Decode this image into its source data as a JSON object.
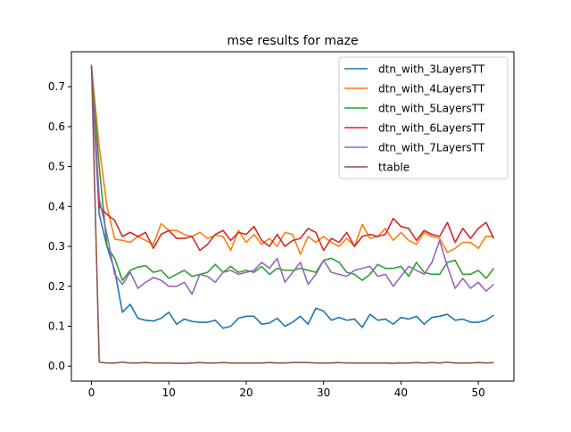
{
  "chart_data": {
    "type": "line",
    "title": "mse results for maze",
    "xlabel": "",
    "ylabel": "",
    "xlim": [
      -2.6,
      54.6
    ],
    "ylim": [
      -0.0375,
      0.7875
    ],
    "x_ticks": [
      0,
      10,
      20,
      30,
      40,
      50
    ],
    "y_ticks": [
      0.0,
      0.1,
      0.2,
      0.3,
      0.4,
      0.5,
      0.6,
      0.7
    ],
    "x_tick_labels": [
      "0",
      "10",
      "20",
      "30",
      "40",
      "50"
    ],
    "y_tick_labels": [
      "0.0",
      "0.1",
      "0.2",
      "0.3",
      "0.4",
      "0.5",
      "0.6",
      "0.7"
    ],
    "grid": false,
    "legend": "top-right",
    "x": [
      0,
      1,
      2,
      3,
      4,
      5,
      6,
      7,
      8,
      9,
      10,
      11,
      12,
      13,
      14,
      15,
      16,
      17,
      18,
      19,
      20,
      21,
      22,
      23,
      24,
      25,
      26,
      27,
      28,
      29,
      30,
      31,
      32,
      33,
      34,
      35,
      36,
      37,
      38,
      39,
      40,
      41,
      42,
      43,
      44,
      45,
      46,
      47,
      48,
      49,
      50,
      51,
      52
    ],
    "series": [
      {
        "name": "dtn_with_3LayersTT",
        "color": "#1f77b4",
        "values": [
          0.75,
          0.38,
          0.3,
          0.24,
          0.135,
          0.155,
          0.12,
          0.115,
          0.113,
          0.12,
          0.135,
          0.105,
          0.118,
          0.112,
          0.11,
          0.11,
          0.115,
          0.095,
          0.1,
          0.12,
          0.125,
          0.125,
          0.105,
          0.108,
          0.12,
          0.1,
          0.11,
          0.125,
          0.105,
          0.145,
          0.138,
          0.115,
          0.122,
          0.115,
          0.118,
          0.097,
          0.13,
          0.115,
          0.118,
          0.105,
          0.122,
          0.118,
          0.125,
          0.105,
          0.122,
          0.125,
          0.13,
          0.115,
          0.118,
          0.11,
          0.11,
          0.115,
          0.128
        ]
      },
      {
        "name": "dtn_with_4LayersTT",
        "color": "#ff7f0e",
        "values": [
          0.75,
          0.55,
          0.4,
          0.318,
          0.315,
          0.31,
          0.325,
          0.315,
          0.305,
          0.357,
          0.34,
          0.34,
          0.33,
          0.325,
          0.335,
          0.32,
          0.328,
          0.325,
          0.29,
          0.34,
          0.31,
          0.33,
          0.305,
          0.32,
          0.3,
          0.335,
          0.33,
          0.28,
          0.325,
          0.31,
          0.325,
          0.31,
          0.3,
          0.32,
          0.3,
          0.355,
          0.32,
          0.325,
          0.345,
          0.315,
          0.335,
          0.315,
          0.305,
          0.335,
          0.325,
          0.32,
          0.285,
          0.295,
          0.31,
          0.31,
          0.295,
          0.325,
          0.325
        ]
      },
      {
        "name": "dtn_with_5LayersTT",
        "color": "#2ca02c",
        "values": [
          0.75,
          0.5,
          0.3,
          0.27,
          0.215,
          0.24,
          0.248,
          0.252,
          0.235,
          0.24,
          0.22,
          0.23,
          0.24,
          0.225,
          0.23,
          0.235,
          0.255,
          0.235,
          0.25,
          0.235,
          0.24,
          0.235,
          0.25,
          0.23,
          0.245,
          0.24,
          0.24,
          0.245,
          0.24,
          0.235,
          0.265,
          0.27,
          0.26,
          0.235,
          0.23,
          0.215,
          0.23,
          0.255,
          0.245,
          0.245,
          0.25,
          0.225,
          0.26,
          0.235,
          0.23,
          0.23,
          0.26,
          0.265,
          0.23,
          0.23,
          0.24,
          0.22,
          0.245
        ]
      },
      {
        "name": "dtn_with_6LayersTT",
        "color": "#d62728",
        "values": [
          0.75,
          0.4,
          0.38,
          0.365,
          0.325,
          0.335,
          0.325,
          0.335,
          0.295,
          0.33,
          0.34,
          0.32,
          0.32,
          0.325,
          0.29,
          0.305,
          0.33,
          0.34,
          0.315,
          0.335,
          0.33,
          0.35,
          0.315,
          0.3,
          0.33,
          0.3,
          0.315,
          0.32,
          0.345,
          0.335,
          0.29,
          0.32,
          0.31,
          0.335,
          0.3,
          0.325,
          0.33,
          0.325,
          0.33,
          0.37,
          0.35,
          0.345,
          0.315,
          0.34,
          0.33,
          0.325,
          0.36,
          0.31,
          0.345,
          0.32,
          0.345,
          0.36,
          0.32
        ]
      },
      {
        "name": "dtn_with_7LayersTT",
        "color": "#9467bd",
        "values": [
          0.75,
          0.42,
          0.33,
          0.23,
          0.205,
          0.235,
          0.195,
          0.21,
          0.222,
          0.215,
          0.2,
          0.2,
          0.21,
          0.18,
          0.23,
          0.225,
          0.21,
          0.235,
          0.24,
          0.23,
          0.235,
          0.24,
          0.26,
          0.245,
          0.27,
          0.21,
          0.235,
          0.26,
          0.205,
          0.23,
          0.265,
          0.235,
          0.23,
          0.225,
          0.24,
          0.245,
          0.25,
          0.225,
          0.23,
          0.2,
          0.225,
          0.25,
          0.24,
          0.23,
          0.26,
          0.315,
          0.25,
          0.195,
          0.22,
          0.195,
          0.21,
          0.188,
          0.205
        ]
      },
      {
        "name": "ttable",
        "color": "#8c564b",
        "values": [
          0.755,
          0.01,
          0.008,
          0.008,
          0.01,
          0.008,
          0.008,
          0.009,
          0.008,
          0.008,
          0.008,
          0.007,
          0.007,
          0.008,
          0.009,
          0.008,
          0.008,
          0.009,
          0.008,
          0.008,
          0.008,
          0.008,
          0.008,
          0.009,
          0.008,
          0.008,
          0.009,
          0.009,
          0.009,
          0.008,
          0.008,
          0.008,
          0.009,
          0.008,
          0.008,
          0.008,
          0.008,
          0.008,
          0.008,
          0.007,
          0.008,
          0.008,
          0.009,
          0.008,
          0.009,
          0.008,
          0.01,
          0.008,
          0.008,
          0.008,
          0.009,
          0.008,
          0.009
        ]
      }
    ]
  }
}
